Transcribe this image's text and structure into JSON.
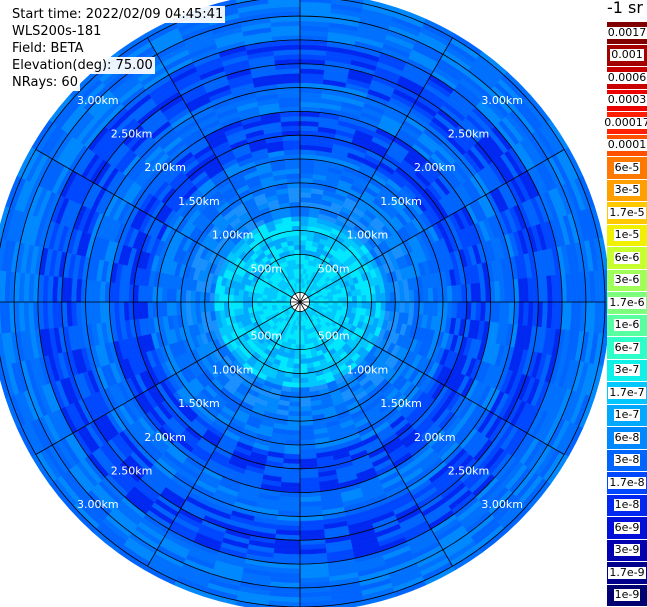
{
  "info": {
    "start_time": "Start time: 2022/02/09 04:45:41",
    "instrument": "WLS200s-181",
    "field": "Field: BETA",
    "elevation": "Elevation(deg): 75.00",
    "nrays": "NRays: 60"
  },
  "colorbar": {
    "unit_label": "-1 sr",
    "labels": [
      "0.0017",
      "0.001",
      "0.0006",
      "0.0003",
      "0.00017",
      "0.0001",
      "6e-5",
      "3e-5",
      "1.7e-5",
      "1e-5",
      "6e-6",
      "3e-6",
      "1.7e-6",
      "1e-6",
      "6e-7",
      "3e-7",
      "1.7e-7",
      "1e-7",
      "6e-8",
      "3e-8",
      "1.7e-8",
      "1e-8",
      "6e-9",
      "3e-9",
      "1.7e-9",
      "1e-9"
    ],
    "colors": [
      "#800000",
      "#a40000",
      "#c80000",
      "#ec0000",
      "#ff2000",
      "#ff5000",
      "#ff7800",
      "#ffa000",
      "#ffc800",
      "#f0f000",
      "#c8ff2e",
      "#a0ff58",
      "#7cff7c",
      "#58ffa0",
      "#2effc8",
      "#0ff0e8",
      "#00c8ff",
      "#00a8ff",
      "#0088ff",
      "#0064ff",
      "#0048ff",
      "#0028f0",
      "#0010d8",
      "#0000b0",
      "#00008c",
      "#000070"
    ]
  },
  "chart_data": {
    "type": "heatmap",
    "projection": "polar PPI",
    "field": "BETA",
    "nrays": 60,
    "ring_labels": [
      "500m",
      "1.00km",
      "1.50km",
      "2.00km",
      "2.50km",
      "3.00km"
    ],
    "ring_radii_km": [
      0.5,
      1.0,
      1.5,
      2.0,
      2.5,
      3.0
    ],
    "max_range_km": 3.2,
    "azimuth_lines_deg": [
      0,
      30,
      60,
      90,
      120,
      150,
      180,
      210,
      240,
      270,
      300,
      330
    ],
    "range_bands": [
      {
        "from_km": 0.1,
        "to_km": 0.45,
        "value": "1e-7"
      },
      {
        "from_km": 0.45,
        "to_km": 0.9,
        "value": "1e-7"
      },
      {
        "from_km": 0.9,
        "to_km": 1.2,
        "value": "6e-8"
      },
      {
        "from_km": 1.2,
        "to_km": 1.6,
        "value": "3e-8"
      },
      {
        "from_km": 1.6,
        "to_km": 2.0,
        "value": "1.7e-8"
      },
      {
        "from_km": 2.0,
        "to_km": 2.3,
        "value": "3e-8"
      },
      {
        "from_km": 2.3,
        "to_km": 2.7,
        "value": "1.7e-8"
      },
      {
        "from_km": 2.7,
        "to_km": 3.2,
        "value": "3e-8"
      }
    ]
  }
}
